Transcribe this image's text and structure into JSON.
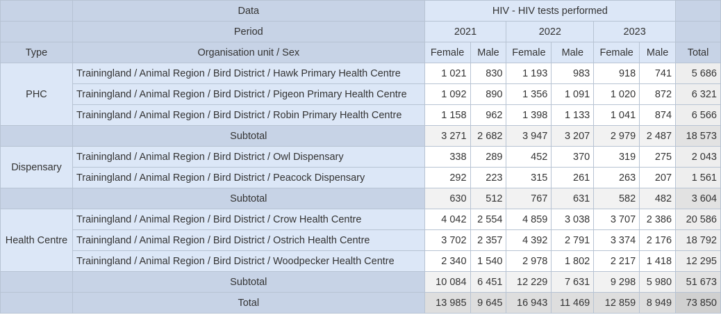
{
  "header": {
    "data_label": "Data",
    "indicator": "HIV - HIV tests performed",
    "period_label": "Period",
    "years": [
      "2021",
      "2022",
      "2023"
    ],
    "type_label": "Type",
    "orgunit_sex_label": "Organisation unit / Sex",
    "female_label": "Female",
    "male_label": "Male",
    "total_label": "Total"
  },
  "groups": [
    {
      "type": "PHC",
      "rows": [
        {
          "ou": "Trainingland / Animal Region / Bird District / Hawk Primary Health Centre",
          "values": [
            "1 021",
            "830",
            "1 193",
            "983",
            "918",
            "741"
          ],
          "total": "5 686"
        },
        {
          "ou": "Trainingland / Animal Region / Bird District / Pigeon Primary Health Centre",
          "values": [
            "1 092",
            "890",
            "1 356",
            "1 091",
            "1 020",
            "872"
          ],
          "total": "6 321"
        },
        {
          "ou": "Trainingland / Animal Region / Bird District / Robin Primary Health Centre",
          "values": [
            "1 158",
            "962",
            "1 398",
            "1 133",
            "1 041",
            "874"
          ],
          "total": "6 566"
        }
      ],
      "subtotal": {
        "label": "Subtotal",
        "values": [
          "3 271",
          "2 682",
          "3 947",
          "3 207",
          "2 979",
          "2 487"
        ],
        "total": "18 573"
      }
    },
    {
      "type": "Dispensary",
      "rows": [
        {
          "ou": "Trainingland / Animal Region / Bird District / Owl Dispensary",
          "values": [
            "338",
            "289",
            "452",
            "370",
            "319",
            "275"
          ],
          "total": "2 043"
        },
        {
          "ou": "Trainingland / Animal Region / Bird District / Peacock Dispensary",
          "values": [
            "292",
            "223",
            "315",
            "261",
            "263",
            "207"
          ],
          "total": "1 561"
        }
      ],
      "subtotal": {
        "label": "Subtotal",
        "values": [
          "630",
          "512",
          "767",
          "631",
          "582",
          "482"
        ],
        "total": "3 604"
      }
    },
    {
      "type": "Health Centre",
      "rows": [
        {
          "ou": "Trainingland / Animal Region / Bird District / Crow Health Centre",
          "values": [
            "4 042",
            "2 554",
            "4 859",
            "3 038",
            "3 707",
            "2 386"
          ],
          "total": "20 586"
        },
        {
          "ou": "Trainingland / Animal Region / Bird District / Ostrich Health Centre",
          "values": [
            "3 702",
            "2 357",
            "4 392",
            "2 791",
            "3 374",
            "2 176"
          ],
          "total": "18 792"
        },
        {
          "ou": "Trainingland / Animal Region / Bird District / Woodpecker Health Centre",
          "values": [
            "2 340",
            "1 540",
            "2 978",
            "1 802",
            "2 217",
            "1 418"
          ],
          "total": "12 295"
        }
      ],
      "subtotal": {
        "label": "Subtotal",
        "values": [
          "10 084",
          "6 451",
          "12 229",
          "7 631",
          "9 298",
          "5 980"
        ],
        "total": "51 673"
      }
    }
  ],
  "grand_total": {
    "label": "Total",
    "values": [
      "13 985",
      "9 645",
      "16 943",
      "11 469",
      "12 859",
      "8 949"
    ],
    "total": "73 850"
  }
}
